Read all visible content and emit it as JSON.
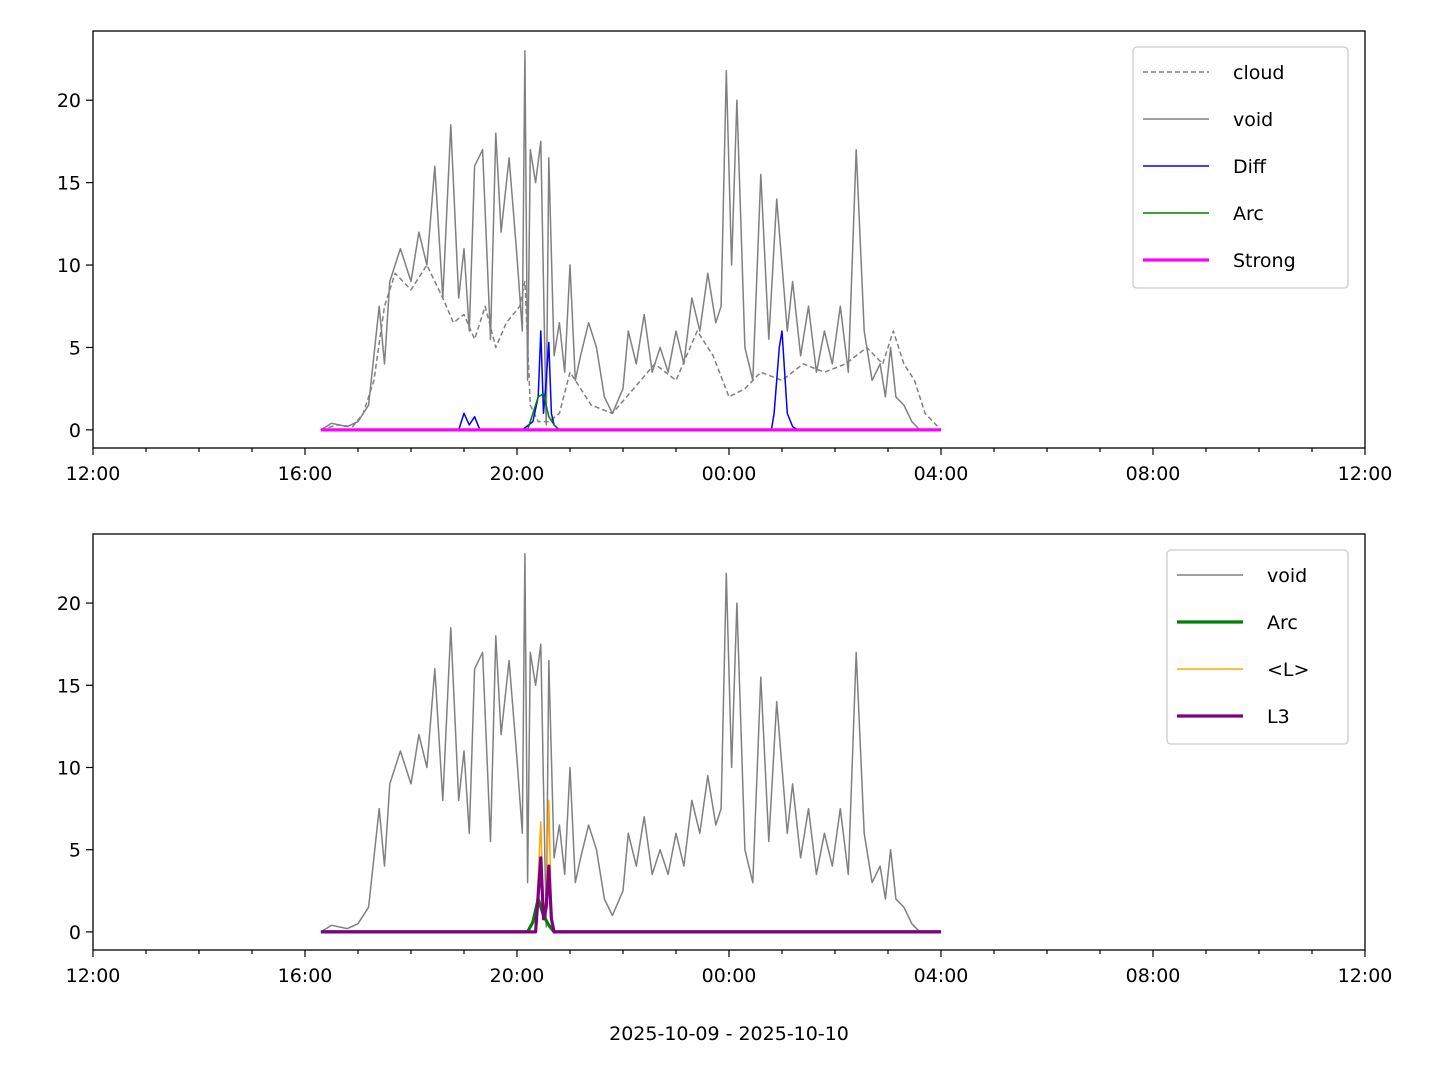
{
  "figure": {
    "footer_label": "2025-10-09 - 2025-10-10"
  },
  "chart_data": [
    {
      "type": "line",
      "title": "",
      "xlabel": "",
      "ylabel": "",
      "xlim": [
        12,
        36
      ],
      "ylim": [
        -1.1,
        24.2
      ],
      "xticks": [
        12,
        16,
        20,
        24,
        28,
        32,
        36
      ],
      "xtick_labels": [
        "12:00",
        "16:00",
        "20:00",
        "00:00",
        "04:00",
        "08:00",
        "12:00"
      ],
      "yticks": [
        0,
        5,
        10,
        15,
        20
      ],
      "ytick_labels": [
        "0",
        "5",
        "10",
        "15",
        "20"
      ],
      "legend_position": "top-right",
      "grid": false,
      "series": [
        {
          "name": "cloud",
          "color": "#808080",
          "dashed": true,
          "width": 1.5,
          "x": [
            16.3,
            16.6,
            16.9,
            17.1,
            17.3,
            17.5,
            17.7,
            18.0,
            18.3,
            18.6,
            18.8,
            19.0,
            19.2,
            19.4,
            19.6,
            19.8,
            20.05,
            20.15,
            20.25,
            20.4,
            20.6,
            20.8,
            21.0,
            21.4,
            21.8,
            22.2,
            22.6,
            23.0,
            23.4,
            23.7,
            24.0,
            24.3,
            24.6,
            25.0,
            25.4,
            25.8,
            26.2,
            26.6,
            26.9,
            27.1,
            27.3,
            27.5,
            27.7,
            28.0
          ],
          "y": [
            0,
            0.3,
            0.2,
            1.0,
            3.0,
            7.5,
            9.5,
            8.5,
            10.0,
            8.0,
            6.5,
            7.0,
            5.5,
            7.5,
            5.0,
            6.5,
            7.5,
            9.0,
            1.5,
            0.5,
            0.5,
            1.0,
            3.5,
            1.5,
            1.0,
            2.5,
            4.0,
            3.0,
            6.0,
            4.5,
            2.0,
            2.5,
            3.5,
            3.0,
            4.0,
            3.5,
            4.0,
            5.0,
            4.0,
            6.0,
            4.0,
            3.0,
            1.0,
            0
          ]
        },
        {
          "name": "void",
          "color": "#808080",
          "dashed": false,
          "width": 1.5,
          "x": [
            16.3,
            16.5,
            16.8,
            17.0,
            17.2,
            17.4,
            17.5,
            17.6,
            17.8,
            18.0,
            18.15,
            18.3,
            18.45,
            18.6,
            18.75,
            18.9,
            19.0,
            19.1,
            19.2,
            19.35,
            19.5,
            19.6,
            19.7,
            19.85,
            20.0,
            20.1,
            20.15,
            20.2,
            20.25,
            20.35,
            20.45,
            20.55,
            20.6,
            20.7,
            20.8,
            20.9,
            21.0,
            21.1,
            21.2,
            21.35,
            21.5,
            21.65,
            21.8,
            22.0,
            22.1,
            22.25,
            22.4,
            22.55,
            22.7,
            22.85,
            23.0,
            23.15,
            23.3,
            23.45,
            23.6,
            23.75,
            23.85,
            23.95,
            24.05,
            24.15,
            24.3,
            24.45,
            24.6,
            24.75,
            24.9,
            25.0,
            25.1,
            25.2,
            25.35,
            25.5,
            25.65,
            25.8,
            25.95,
            26.1,
            26.25,
            26.4,
            26.55,
            26.7,
            26.85,
            26.95,
            27.05,
            27.15,
            27.3,
            27.45,
            27.6,
            27.75,
            27.9,
            28.0
          ],
          "y": [
            0,
            0.4,
            0.2,
            0.5,
            1.5,
            7.5,
            4.0,
            9.0,
            11.0,
            9.0,
            12.0,
            10.0,
            16.0,
            8.0,
            18.5,
            8.0,
            11.0,
            6.0,
            16.0,
            17.0,
            5.5,
            18.0,
            12.0,
            16.5,
            10.5,
            6.0,
            23.0,
            3.0,
            17.0,
            15.0,
            17.5,
            0.3,
            16.5,
            4.5,
            6.5,
            3.5,
            10.0,
            3.0,
            4.5,
            6.5,
            5.0,
            2.0,
            1.0,
            2.5,
            6.0,
            4.0,
            7.0,
            3.5,
            5.0,
            3.5,
            6.0,
            4.0,
            8.0,
            6.0,
            9.5,
            6.5,
            7.5,
            21.8,
            10.0,
            20.0,
            5.0,
            3.0,
            15.5,
            5.5,
            14.0,
            10.0,
            6.0,
            9.0,
            4.5,
            7.5,
            3.5,
            6.0,
            4.0,
            7.5,
            3.5,
            17.0,
            6.0,
            3.0,
            4.0,
            2.0,
            5.0,
            2.0,
            1.5,
            0.5,
            0,
            0,
            0,
            0
          ]
        },
        {
          "name": "Diff",
          "color": "#0000ff",
          "dashed": false,
          "width": 1.5,
          "x": [
            16.3,
            18.9,
            19.0,
            19.1,
            19.2,
            19.3,
            20.1,
            20.3,
            20.4,
            20.45,
            20.5,
            20.55,
            20.6,
            20.65,
            20.7,
            20.8,
            24.8,
            24.85,
            24.95,
            25.0,
            25.1,
            25.2,
            25.3,
            28.0
          ],
          "y": [
            0,
            0,
            1.0,
            0.3,
            0.8,
            0,
            0,
            0.5,
            2.0,
            6.0,
            1.0,
            3.0,
            5.3,
            1.0,
            0.3,
            0,
            0,
            1.0,
            5.0,
            6.0,
            1.0,
            0.2,
            0,
            0
          ]
        },
        {
          "name": "Arc",
          "color": "#008000",
          "dashed": false,
          "width": 1.5,
          "x": [
            16.3,
            20.2,
            20.3,
            20.4,
            20.5,
            20.55,
            20.6,
            20.7,
            20.8,
            28.0
          ],
          "y": [
            0,
            0,
            1.0,
            2.0,
            2.2,
            1.5,
            0.8,
            0.3,
            0,
            0
          ]
        },
        {
          "name": "Strong",
          "color": "#ff00ff",
          "dashed": false,
          "width": 3.2,
          "x": [
            16.3,
            28.0
          ],
          "y": [
            0,
            0
          ]
        }
      ]
    },
    {
      "type": "line",
      "title": "",
      "xlabel": "2025-10-09 - 2025-10-10",
      "ylabel": "",
      "xlim": [
        12,
        36
      ],
      "ylim": [
        -1.1,
        24.2
      ],
      "xticks": [
        12,
        16,
        20,
        24,
        28,
        32,
        36
      ],
      "xtick_labels": [
        "12:00",
        "16:00",
        "20:00",
        "00:00",
        "04:00",
        "08:00",
        "12:00"
      ],
      "yticks": [
        0,
        5,
        10,
        15,
        20
      ],
      "ytick_labels": [
        "0",
        "5",
        "10",
        "15",
        "20"
      ],
      "legend_position": "top-right",
      "grid": false,
      "series": [
        {
          "name": "void",
          "color": "#808080",
          "dashed": false,
          "width": 1.5,
          "x": [
            16.3,
            16.5,
            16.8,
            17.0,
            17.2,
            17.4,
            17.5,
            17.6,
            17.8,
            18.0,
            18.15,
            18.3,
            18.45,
            18.6,
            18.75,
            18.9,
            19.0,
            19.1,
            19.2,
            19.35,
            19.5,
            19.6,
            19.7,
            19.85,
            20.0,
            20.1,
            20.15,
            20.2,
            20.25,
            20.35,
            20.45,
            20.55,
            20.6,
            20.7,
            20.8,
            20.9,
            21.0,
            21.1,
            21.2,
            21.35,
            21.5,
            21.65,
            21.8,
            22.0,
            22.1,
            22.25,
            22.4,
            22.55,
            22.7,
            22.85,
            23.0,
            23.15,
            23.3,
            23.45,
            23.6,
            23.75,
            23.85,
            23.95,
            24.05,
            24.15,
            24.3,
            24.45,
            24.6,
            24.75,
            24.9,
            25.0,
            25.1,
            25.2,
            25.35,
            25.5,
            25.65,
            25.8,
            25.95,
            26.1,
            26.25,
            26.4,
            26.55,
            26.7,
            26.85,
            26.95,
            27.05,
            27.15,
            27.3,
            27.45,
            27.6,
            27.75,
            27.9,
            28.0
          ],
          "y": [
            0,
            0.4,
            0.2,
            0.5,
            1.5,
            7.5,
            4.0,
            9.0,
            11.0,
            9.0,
            12.0,
            10.0,
            16.0,
            8.0,
            18.5,
            8.0,
            11.0,
            6.0,
            16.0,
            17.0,
            5.5,
            18.0,
            12.0,
            16.5,
            10.5,
            6.0,
            23.0,
            3.0,
            17.0,
            15.0,
            17.5,
            0.3,
            16.5,
            4.5,
            6.5,
            3.5,
            10.0,
            3.0,
            4.5,
            6.5,
            5.0,
            2.0,
            1.0,
            2.5,
            6.0,
            4.0,
            7.0,
            3.5,
            5.0,
            3.5,
            6.0,
            4.0,
            8.0,
            6.0,
            9.5,
            6.5,
            7.5,
            21.8,
            10.0,
            20.0,
            5.0,
            3.0,
            15.5,
            5.5,
            14.0,
            10.0,
            6.0,
            9.0,
            4.5,
            7.5,
            3.5,
            6.0,
            4.0,
            7.5,
            3.5,
            17.0,
            6.0,
            3.0,
            4.0,
            2.0,
            5.0,
            2.0,
            1.5,
            0.5,
            0,
            0,
            0,
            0
          ]
        },
        {
          "name": "Arc",
          "color": "#008000",
          "dashed": false,
          "width": 3.2,
          "x": [
            16.3,
            20.2,
            20.3,
            20.4,
            20.5,
            20.6,
            20.7,
            28.0
          ],
          "y": [
            0,
            0,
            0.6,
            2.0,
            1.0,
            0.4,
            0,
            0
          ]
        },
        {
          "name": "<L>",
          "color": "#ffa500",
          "dashed": false,
          "width": 1.5,
          "x": [
            16.3,
            20.35,
            20.45,
            20.5,
            20.55,
            20.6,
            20.65,
            20.7,
            28.0
          ],
          "y": [
            0,
            0,
            6.7,
            1.0,
            2.0,
            8.0,
            1.0,
            0,
            0
          ]
        },
        {
          "name": "L3",
          "color": "#800080",
          "dashed": false,
          "width": 3.2,
          "x": [
            16.3,
            20.35,
            20.45,
            20.5,
            20.55,
            20.6,
            20.65,
            20.7,
            28.0
          ],
          "y": [
            0,
            0,
            4.5,
            0.8,
            1.5,
            4.0,
            0.8,
            0,
            0
          ]
        }
      ]
    }
  ]
}
